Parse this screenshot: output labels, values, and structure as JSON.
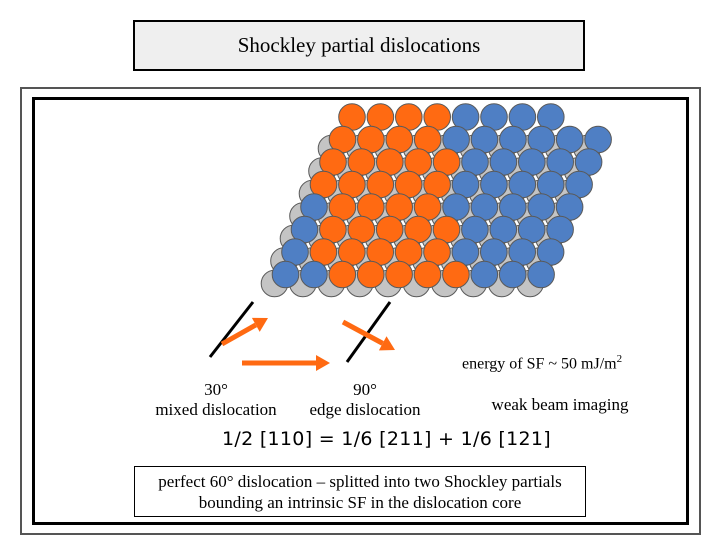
{
  "title": "Shockley partial dislocations",
  "labels": {
    "partial_30_angle": "30°",
    "partial_30_name": "mixed dislocation",
    "partial_90_angle": "90°",
    "partial_90_name": "edge dislocation",
    "energy_text": "energy of SF ~ 50 mJ/m",
    "energy_exp": "2",
    "imaging": "weak beam imaging"
  },
  "equation": "1/2 [110] = 1/6 [211] + 1/6 [121]",
  "caption_line1": "perfect 60° dislocation – splitted into two Shockley partials",
  "caption_line2": "bounding an intrinsic SF in the dislocation core",
  "colors": {
    "blue_atom": "#4f7fc4",
    "orange_atom": "#ff6a12",
    "grey_atom": "#c4c4c4",
    "arrow": "#ff6a12"
  }
}
